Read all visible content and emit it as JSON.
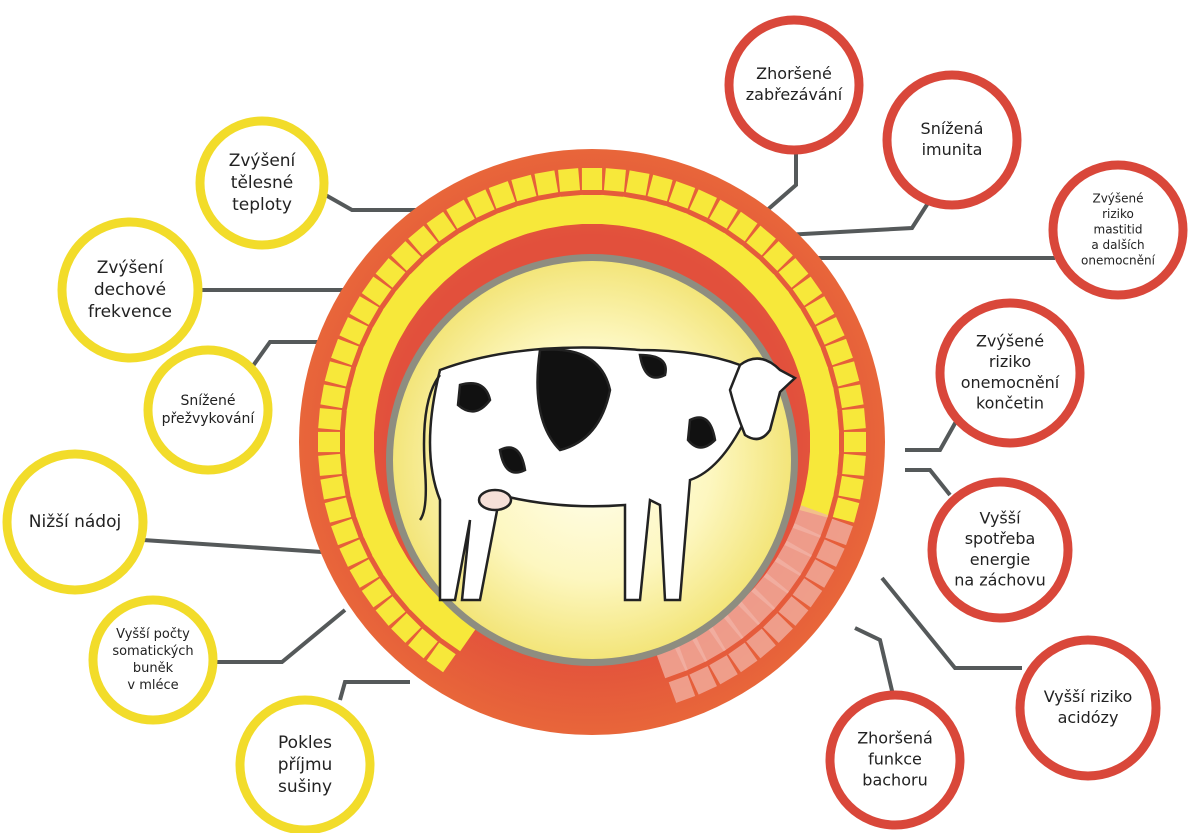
{
  "nodes": [
    {
      "lines": [
        "Zvýšení",
        "tělesné",
        "teploty"
      ]
    },
    {
      "lines": [
        "Zvýšení",
        "dechové",
        "frekvence"
      ]
    },
    {
      "lines": [
        "Snížené",
        "přežvykování"
      ]
    },
    {
      "lines": [
        "Nižší nádoj"
      ]
    },
    {
      "lines": [
        "Vyšší počty",
        "somatických",
        "buněk",
        "v mléce"
      ]
    },
    {
      "lines": [
        "Pokles",
        "příjmu",
        "sušiny"
      ]
    },
    {
      "lines": [
        "Zhoršené",
        "zabřezávání"
      ]
    },
    {
      "lines": [
        "Snížená",
        "imunita"
      ]
    },
    {
      "lines": [
        "Zvýšené",
        "riziko",
        "mastitid",
        "a dalších",
        "onemocnění"
      ]
    },
    {
      "lines": [
        "Zvýšené",
        "riziko",
        "onemocnění",
        "končetin"
      ]
    },
    {
      "lines": [
        "Vyšší",
        "spotřeba",
        "energie",
        "na záchovu"
      ]
    },
    {
      "lines": [
        "Vyšší riziko",
        "acidózy"
      ]
    },
    {
      "lines": [
        "Zhoršená",
        "funkce",
        "bachoru"
      ]
    }
  ]
}
